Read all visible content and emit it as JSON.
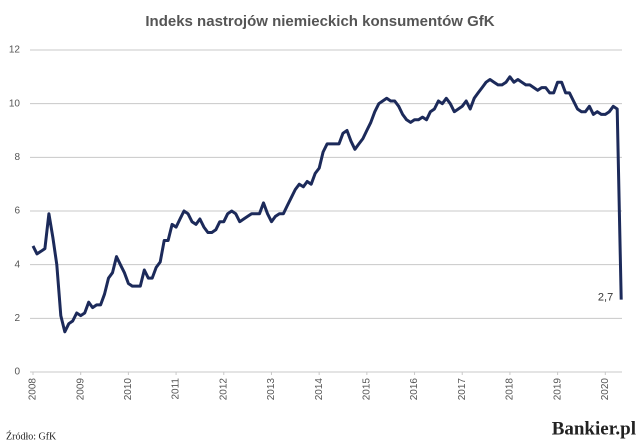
{
  "chart_data": {
    "type": "line",
    "title": "Indeks nastrojów niemieckich konsumentów GfK",
    "source": "Źródło: GfK",
    "brand": "Bankier.pl",
    "xlim": [
      2008,
      2020.35
    ],
    "xticks": [
      2008,
      2009,
      2010,
      2011,
      2012,
      2013,
      2014,
      2015,
      2016,
      2017,
      2018,
      2019,
      2020
    ],
    "ylim": [
      0,
      12
    ],
    "yticks": [
      0,
      2,
      4,
      6,
      8,
      10,
      12
    ],
    "grid": true,
    "series": [
      {
        "color": "#1c2a5a",
        "x": [
          2008,
          2008.083,
          2008.167,
          2008.25,
          2008.333,
          2008.417,
          2008.5,
          2008.583,
          2008.667,
          2008.75,
          2008.833,
          2008.917,
          2009,
          2009.083,
          2009.167,
          2009.25,
          2009.333,
          2009.417,
          2009.5,
          2009.583,
          2009.667,
          2009.75,
          2009.833,
          2009.917,
          2010,
          2010.083,
          2010.167,
          2010.25,
          2010.333,
          2010.417,
          2010.5,
          2010.583,
          2010.667,
          2010.75,
          2010.833,
          2010.917,
          2011,
          2011.083,
          2011.167,
          2011.25,
          2011.333,
          2011.417,
          2011.5,
          2011.583,
          2011.667,
          2011.75,
          2011.833,
          2011.917,
          2012,
          2012.083,
          2012.167,
          2012.25,
          2012.333,
          2012.417,
          2012.5,
          2012.583,
          2012.667,
          2012.75,
          2012.833,
          2012.917,
          2013,
          2013.083,
          2013.167,
          2013.25,
          2013.333,
          2013.417,
          2013.5,
          2013.583,
          2013.667,
          2013.75,
          2013.833,
          2013.917,
          2014,
          2014.083,
          2014.167,
          2014.25,
          2014.333,
          2014.417,
          2014.5,
          2014.583,
          2014.667,
          2014.75,
          2014.833,
          2014.917,
          2015,
          2015.083,
          2015.167,
          2015.25,
          2015.333,
          2015.417,
          2015.5,
          2015.583,
          2015.667,
          2015.75,
          2015.833,
          2015.917,
          2016,
          2016.083,
          2016.167,
          2016.25,
          2016.333,
          2016.417,
          2016.5,
          2016.583,
          2016.667,
          2016.75,
          2016.833,
          2016.917,
          2017,
          2017.083,
          2017.167,
          2017.25,
          2017.333,
          2017.417,
          2017.5,
          2017.583,
          2017.667,
          2017.75,
          2017.833,
          2017.917,
          2018,
          2018.083,
          2018.167,
          2018.25,
          2018.333,
          2018.417,
          2018.5,
          2018.583,
          2018.667,
          2018.75,
          2018.833,
          2018.917,
          2019,
          2019.083,
          2019.167,
          2019.25,
          2019.333,
          2019.417,
          2019.5,
          2019.583,
          2019.667,
          2019.75,
          2019.833,
          2019.917,
          2020,
          2020.083,
          2020.167,
          2020.25,
          2020.333
        ],
        "values": [
          4.7,
          4.4,
          4.5,
          4.6,
          5.9,
          5.0,
          4.0,
          2.1,
          1.5,
          1.8,
          1.9,
          2.2,
          2.1,
          2.2,
          2.6,
          2.4,
          2.5,
          2.5,
          2.9,
          3.5,
          3.7,
          4.3,
          4.0,
          3.7,
          3.3,
          3.2,
          3.2,
          3.2,
          3.8,
          3.5,
          3.5,
          3.9,
          4.1,
          4.9,
          4.9,
          5.5,
          5.4,
          5.7,
          6.0,
          5.9,
          5.6,
          5.5,
          5.7,
          5.4,
          5.2,
          5.2,
          5.3,
          5.6,
          5.6,
          5.9,
          6.0,
          5.9,
          5.6,
          5.7,
          5.8,
          5.9,
          5.9,
          5.9,
          6.3,
          5.9,
          5.6,
          5.8,
          5.9,
          5.9,
          6.2,
          6.5,
          6.8,
          7.0,
          6.9,
          7.1,
          7.0,
          7.4,
          7.6,
          8.2,
          8.5,
          8.5,
          8.5,
          8.5,
          8.9,
          9.0,
          8.6,
          8.3,
          8.5,
          8.7,
          9.0,
          9.3,
          9.7,
          10.0,
          10.1,
          10.2,
          10.1,
          10.1,
          9.9,
          9.6,
          9.4,
          9.3,
          9.4,
          9.4,
          9.5,
          9.4,
          9.7,
          9.8,
          10.1,
          10.0,
          10.2,
          10.0,
          9.7,
          9.8,
          9.9,
          10.1,
          9.8,
          10.2,
          10.4,
          10.6,
          10.8,
          10.9,
          10.8,
          10.7,
          10.7,
          10.8,
          11.0,
          10.8,
          10.9,
          10.8,
          10.7,
          10.7,
          10.6,
          10.5,
          10.6,
          10.6,
          10.4,
          10.4,
          10.8,
          10.8,
          10.4,
          10.4,
          10.1,
          9.8,
          9.7,
          9.7,
          9.9,
          9.6,
          9.7,
          9.6,
          9.6,
          9.7,
          9.9,
          9.8,
          2.7
        ],
        "value_labels": [
          null,
          null,
          null,
          null,
          null,
          null,
          null,
          null,
          null,
          null,
          null,
          null,
          null,
          null,
          null,
          null,
          null,
          null,
          null,
          null,
          null,
          null,
          null,
          null,
          null,
          null,
          null,
          null,
          null,
          null,
          null,
          null,
          null,
          null,
          null,
          null,
          null,
          null,
          null,
          null,
          null,
          null,
          null,
          null,
          null,
          null,
          null,
          null,
          null,
          null,
          null,
          null,
          null,
          null,
          null,
          null,
          null,
          null,
          null,
          null,
          null,
          null,
          null,
          null,
          null,
          null,
          null,
          null,
          null,
          null,
          null,
          null,
          null,
          null,
          null,
          null,
          null,
          null,
          null,
          null,
          null,
          null,
          null,
          null,
          null,
          null,
          null,
          null,
          null,
          null,
          null,
          null,
          null,
          null,
          null,
          null,
          null,
          null,
          null,
          null,
          null,
          null,
          null,
          null,
          null,
          null,
          null,
          null,
          null,
          null,
          null,
          null,
          null,
          null,
          null,
          null,
          null,
          null,
          null,
          null,
          null,
          null,
          null,
          null,
          null,
          null,
          null,
          null,
          null,
          null,
          null,
          null,
          null,
          null,
          null,
          null,
          null,
          null,
          null,
          null,
          null,
          null,
          null,
          null,
          null,
          null,
          null,
          null,
          "2,7"
        ]
      }
    ]
  }
}
